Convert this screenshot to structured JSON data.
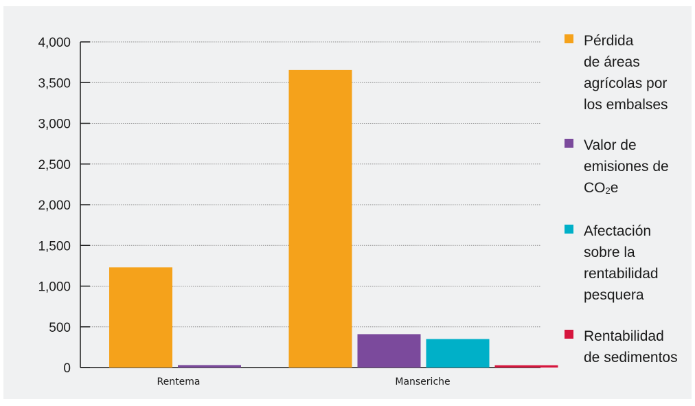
{
  "chart_data": {
    "type": "bar",
    "categories": [
      "Rentema",
      "Manseriche"
    ],
    "series": [
      {
        "name": "Pérdida de áreas agrícolas por los embalses",
        "color": "#f5a21b",
        "values": [
          1230,
          3655
        ]
      },
      {
        "name": "Valor de emisiones de CO₂e",
        "color": "#7b4a9c",
        "values": [
          30,
          410
        ]
      },
      {
        "name": "Afectación sobre la rentabilidad pesquera",
        "color": "#00b0c8",
        "values": [
          null,
          350
        ]
      },
      {
        "name": "Rentabilidad de sedimentos",
        "color": "#d6163e",
        "values": [
          null,
          28
        ]
      }
    ],
    "ylim": [
      0,
      4000
    ],
    "yticks": [
      0,
      500,
      1000,
      1500,
      2000,
      2500,
      3000,
      3500,
      4000
    ],
    "ytick_labels": [
      "0",
      "500",
      "1,000",
      "1,500",
      "2,000",
      "2,500",
      "3,000",
      "3,500",
      "4,000"
    ],
    "grid": true,
    "legend_position": "right",
    "title": "",
    "xlabel": "",
    "ylabel": ""
  },
  "legend": [
    {
      "lines": [
        "Pérdida",
        "de áreas",
        "agrícolas por",
        "los embalses"
      ],
      "color": "#f5a21b"
    },
    {
      "lines": [
        "Valor de",
        "emisiones de",
        "CO|2|e"
      ],
      "color": "#7b4a9c"
    },
    {
      "lines": [
        "Afectación",
        "sobre la",
        "rentabilidad",
        "pesquera"
      ],
      "color": "#00b0c8"
    },
    {
      "lines": [
        "Rentabilidad",
        "de sedimentos"
      ],
      "color": "#d6163e"
    }
  ]
}
